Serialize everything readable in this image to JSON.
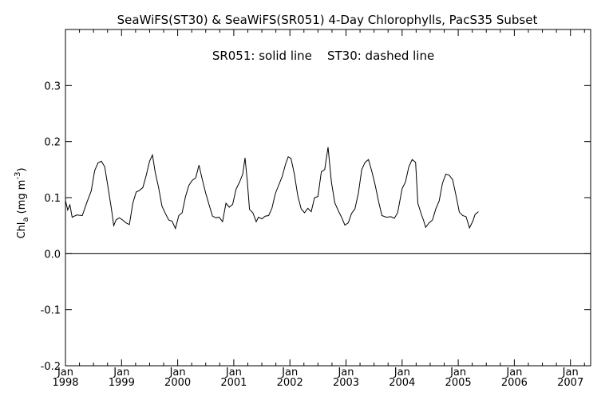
{
  "chart_data": {
    "type": "line",
    "title": "SeaWiFS(ST30) & SeaWiFS(SR051) 4-Day Chlorophylls, PacS35 Subset",
    "annotation": "SR051: solid line    ST30: dashed line",
    "ylabel": {
      "main": "Chl",
      "sub": "a",
      "unit_open": " (mg m",
      "sup": "-3",
      "unit_close": ")"
    },
    "ylim": [
      -0.2,
      0.4
    ],
    "xlim": [
      1998.0,
      2007.36
    ],
    "yticks": [
      -0.2,
      -0.1,
      0.0,
      0.1,
      0.2,
      0.3
    ],
    "ytick_labels": [
      "-0.2",
      "-0.1",
      "0.0",
      "0.1",
      "0.2",
      "0.3"
    ],
    "xticks": [
      {
        "pos": 1998,
        "month": "Jan",
        "year": "1998"
      },
      {
        "pos": 1999,
        "month": "Jan",
        "year": "1999"
      },
      {
        "pos": 2000,
        "month": "Jan",
        "year": "2000"
      },
      {
        "pos": 2001,
        "month": "Jan",
        "year": "2001"
      },
      {
        "pos": 2002,
        "month": "Jan",
        "year": "2002"
      },
      {
        "pos": 2003,
        "month": "Jan",
        "year": "2003"
      },
      {
        "pos": 2004,
        "month": "Jan",
        "year": "2004"
      },
      {
        "pos": 2005,
        "month": "Jan",
        "year": "2005"
      },
      {
        "pos": 2006,
        "month": "Jan",
        "year": "2006"
      },
      {
        "pos": 2007,
        "month": "Jan",
        "year": "2007"
      }
    ],
    "zero_line": 0.0,
    "grid": false,
    "series": [
      {
        "name": "SR051",
        "style": "solid",
        "color": "#000000",
        "points": [
          [
            1998.0,
            0.095
          ],
          [
            1998.04,
            0.078
          ],
          [
            1998.08,
            0.087
          ],
          [
            1998.12,
            0.065
          ],
          [
            1998.2,
            0.069
          ],
          [
            1998.3,
            0.068
          ],
          [
            1998.38,
            0.091
          ],
          [
            1998.46,
            0.112
          ],
          [
            1998.52,
            0.148
          ],
          [
            1998.58,
            0.162
          ],
          [
            1998.64,
            0.165
          ],
          [
            1998.7,
            0.155
          ],
          [
            1998.76,
            0.118
          ],
          [
            1998.82,
            0.08
          ],
          [
            1998.86,
            0.05
          ],
          [
            1998.9,
            0.06
          ],
          [
            1998.96,
            0.064
          ],
          [
            1999.02,
            0.06
          ],
          [
            1999.08,
            0.055
          ],
          [
            1999.14,
            0.052
          ],
          [
            1999.2,
            0.09
          ],
          [
            1999.26,
            0.11
          ],
          [
            1999.32,
            0.113
          ],
          [
            1999.38,
            0.118
          ],
          [
            1999.44,
            0.14
          ],
          [
            1999.5,
            0.165
          ],
          [
            1999.55,
            0.176
          ],
          [
            1999.6,
            0.145
          ],
          [
            1999.66,
            0.118
          ],
          [
            1999.72,
            0.085
          ],
          [
            1999.78,
            0.072
          ],
          [
            1999.84,
            0.06
          ],
          [
            1999.9,
            0.058
          ],
          [
            1999.96,
            0.045
          ],
          [
            2000.02,
            0.068
          ],
          [
            2000.08,
            0.073
          ],
          [
            2000.14,
            0.102
          ],
          [
            2000.2,
            0.122
          ],
          [
            2000.26,
            0.131
          ],
          [
            2000.32,
            0.135
          ],
          [
            2000.38,
            0.158
          ],
          [
            2000.44,
            0.132
          ],
          [
            2000.5,
            0.108
          ],
          [
            2000.56,
            0.087
          ],
          [
            2000.62,
            0.067
          ],
          [
            2000.68,
            0.064
          ],
          [
            2000.74,
            0.065
          ],
          [
            2000.8,
            0.057
          ],
          [
            2000.86,
            0.09
          ],
          [
            2000.92,
            0.083
          ],
          [
            2000.98,
            0.088
          ],
          [
            2001.04,
            0.115
          ],
          [
            2001.1,
            0.127
          ],
          [
            2001.16,
            0.142
          ],
          [
            2001.2,
            0.171
          ],
          [
            2001.24,
            0.13
          ],
          [
            2001.28,
            0.079
          ],
          [
            2001.34,
            0.073
          ],
          [
            2001.4,
            0.057
          ],
          [
            2001.44,
            0.065
          ],
          [
            2001.5,
            0.062
          ],
          [
            2001.56,
            0.067
          ],
          [
            2001.62,
            0.068
          ],
          [
            2001.68,
            0.081
          ],
          [
            2001.74,
            0.107
          ],
          [
            2001.8,
            0.122
          ],
          [
            2001.86,
            0.137
          ],
          [
            2001.92,
            0.159
          ],
          [
            2001.97,
            0.173
          ],
          [
            2002.02,
            0.17
          ],
          [
            2002.08,
            0.142
          ],
          [
            2002.14,
            0.104
          ],
          [
            2002.2,
            0.08
          ],
          [
            2002.26,
            0.073
          ],
          [
            2002.32,
            0.081
          ],
          [
            2002.38,
            0.075
          ],
          [
            2002.44,
            0.1
          ],
          [
            2002.5,
            0.102
          ],
          [
            2002.56,
            0.146
          ],
          [
            2002.62,
            0.15
          ],
          [
            2002.68,
            0.19
          ],
          [
            2002.74,
            0.128
          ],
          [
            2002.8,
            0.091
          ],
          [
            2002.86,
            0.077
          ],
          [
            2002.92,
            0.065
          ],
          [
            2002.98,
            0.051
          ],
          [
            2003.04,
            0.055
          ],
          [
            2003.1,
            0.072
          ],
          [
            2003.16,
            0.08
          ],
          [
            2003.22,
            0.108
          ],
          [
            2003.28,
            0.15
          ],
          [
            2003.34,
            0.163
          ],
          [
            2003.4,
            0.168
          ],
          [
            2003.46,
            0.147
          ],
          [
            2003.52,
            0.122
          ],
          [
            2003.58,
            0.093
          ],
          [
            2003.64,
            0.068
          ],
          [
            2003.72,
            0.065
          ],
          [
            2003.8,
            0.066
          ],
          [
            2003.86,
            0.063
          ],
          [
            2003.92,
            0.073
          ],
          [
            2004.0,
            0.116
          ],
          [
            2004.06,
            0.128
          ],
          [
            2004.12,
            0.155
          ],
          [
            2004.18,
            0.168
          ],
          [
            2004.24,
            0.163
          ],
          [
            2004.28,
            0.09
          ],
          [
            2004.34,
            0.071
          ],
          [
            2004.38,
            0.06
          ],
          [
            2004.42,
            0.047
          ],
          [
            2004.48,
            0.055
          ],
          [
            2004.54,
            0.06
          ],
          [
            2004.6,
            0.08
          ],
          [
            2004.66,
            0.094
          ],
          [
            2004.72,
            0.126
          ],
          [
            2004.78,
            0.142
          ],
          [
            2004.84,
            0.14
          ],
          [
            2004.9,
            0.132
          ],
          [
            2004.96,
            0.104
          ],
          [
            2005.02,
            0.074
          ],
          [
            2005.08,
            0.068
          ],
          [
            2005.14,
            0.066
          ],
          [
            2005.2,
            0.046
          ],
          [
            2005.26,
            0.058
          ],
          [
            2005.3,
            0.07
          ],
          [
            2005.36,
            0.075
          ]
        ]
      }
    ]
  }
}
